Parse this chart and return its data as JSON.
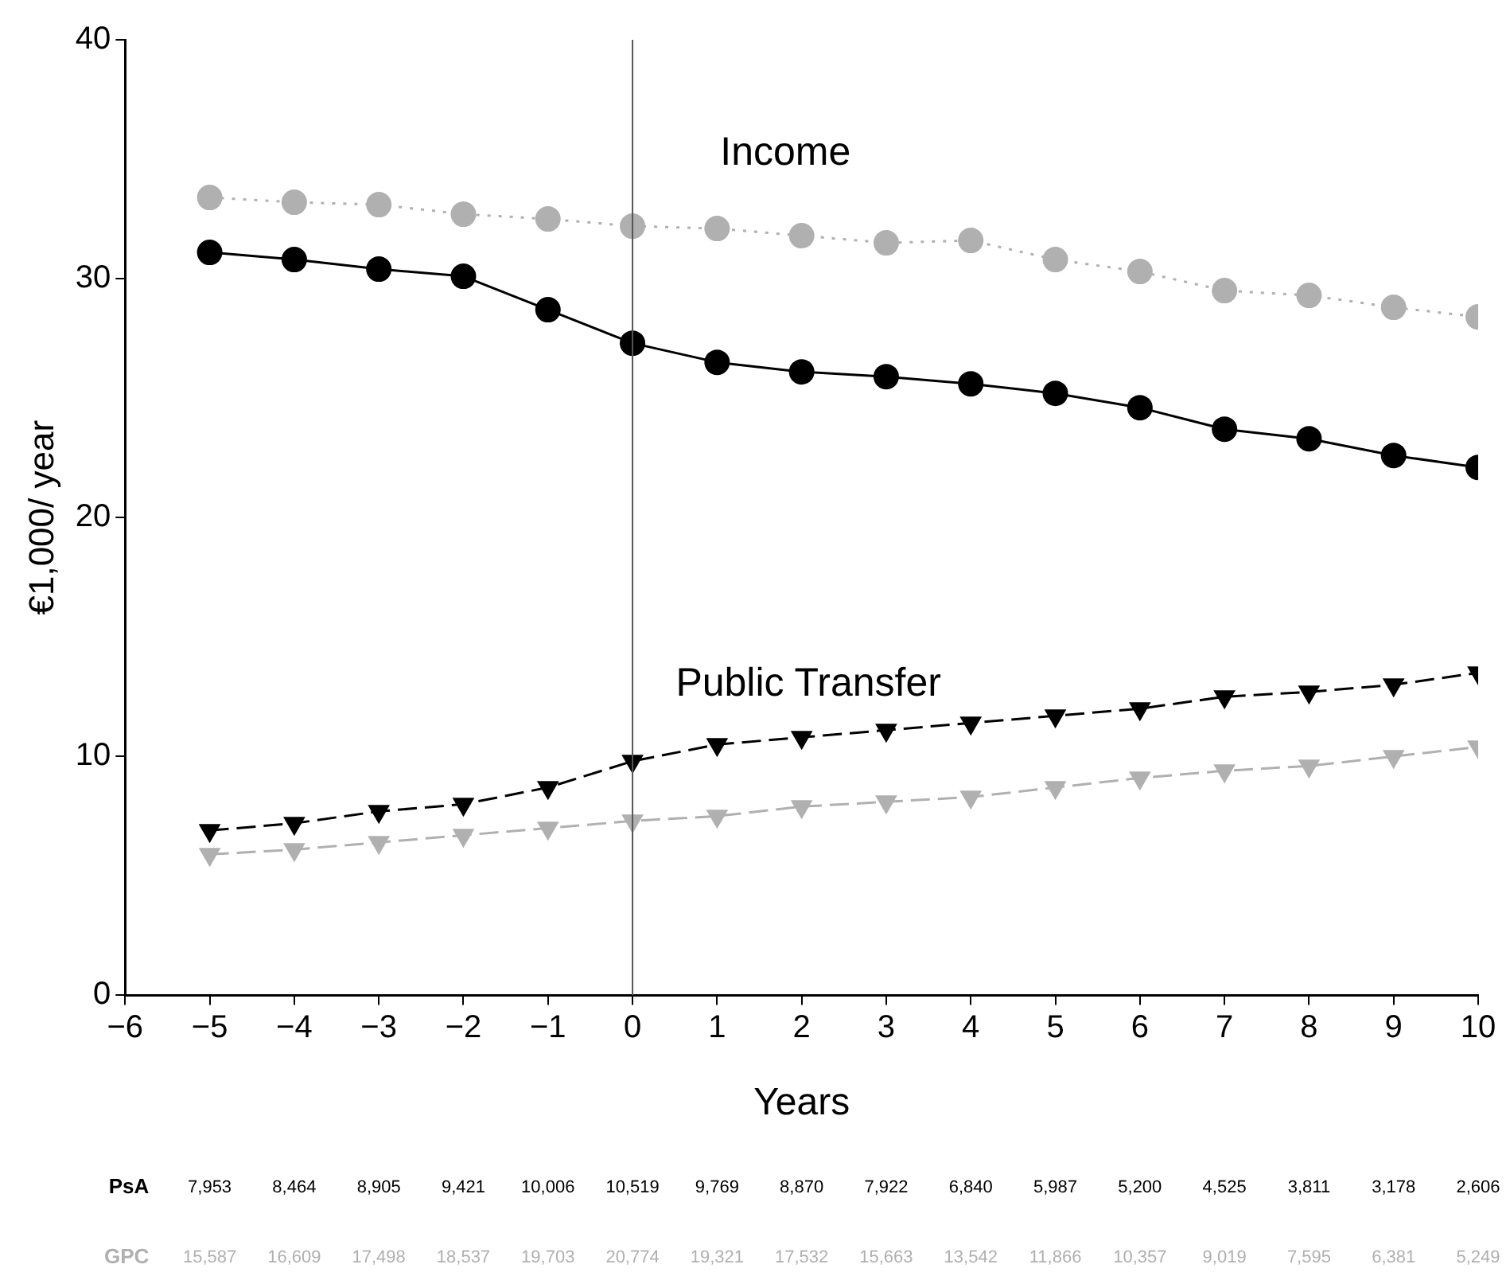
{
  "chart_data": {
    "type": "line",
    "xlabel": "Years",
    "ylabel": "€1,000/ year",
    "x": [
      -5,
      -4,
      -3,
      -2,
      -1,
      0,
      1,
      2,
      3,
      4,
      5,
      6,
      7,
      8,
      9,
      10
    ],
    "series": [
      {
        "color": "#000000",
        "marker": "circle",
        "line_style": "solid",
        "values": [
          31.1,
          30.8,
          30.4,
          30.1,
          28.7,
          27.3,
          26.5,
          26.1,
          25.9,
          25.6,
          25.2,
          24.6,
          23.7,
          23.3,
          22.6,
          22.1
        ]
      },
      {
        "color": "#b0b0b0",
        "marker": "circle",
        "line_style": "dotted",
        "values": [
          33.4,
          33.2,
          33.1,
          32.7,
          32.5,
          32.2,
          32.1,
          31.8,
          31.5,
          31.6,
          30.8,
          30.3,
          29.5,
          29.3,
          28.8,
          28.4
        ]
      },
      {
        "color": "#000000",
        "marker": "triangle",
        "line_style": "dashed",
        "values": [
          6.9,
          7.2,
          7.7,
          8.0,
          8.7,
          9.8,
          10.5,
          10.8,
          11.1,
          11.4,
          11.7,
          12.0,
          12.5,
          12.7,
          13.0,
          13.5
        ]
      },
      {
        "color": "#b0b0b0",
        "marker": "triangle",
        "line_style": "dashed",
        "values": [
          5.9,
          6.1,
          6.4,
          6.7,
          7.0,
          7.3,
          7.5,
          7.9,
          8.1,
          8.3,
          8.7,
          9.1,
          9.4,
          9.6,
          10.0,
          10.4
        ]
      }
    ],
    "xlim": [
      -6,
      10
    ],
    "xticks": [
      -6,
      -5,
      -4,
      -3,
      -2,
      -1,
      0,
      1,
      2,
      3,
      4,
      5,
      6,
      7,
      8,
      9,
      10
    ],
    "ylim": [
      0,
      40
    ],
    "yticks": [
      0,
      10,
      20,
      30,
      40
    ],
    "grid": false,
    "legend": false,
    "ref_lines": [
      {
        "axis": "x",
        "value": 0,
        "color": "#555555"
      }
    ],
    "annotations": [
      "Income",
      "Public Transfer",
      "PsA",
      "7,953",
      "8,464",
      "8,905",
      "9,421",
      "10,006",
      "10,519",
      "9,769",
      "8,870",
      "7,922",
      "6,840",
      "5,987",
      "5,200",
      "4,525",
      "3,811",
      "3,178",
      "2,606",
      "GPC",
      "15,587",
      "16,609",
      "17,498",
      "18,537",
      "19,703",
      "20,774",
      "19,321",
      "17,532",
      "15,663",
      "13,542",
      "11,866",
      "10,357",
      "9,019",
      "7,595",
      "6,381",
      "5,249"
    ]
  }
}
